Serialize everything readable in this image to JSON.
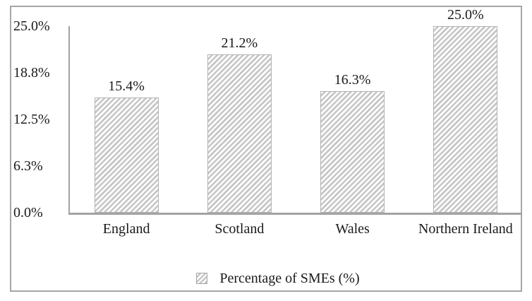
{
  "chart_data": {
    "type": "bar",
    "title": "",
    "xlabel": "",
    "ylabel": "",
    "categories": [
      "England",
      "Scotland",
      "Wales",
      "Northern Ireland"
    ],
    "values": [
      15.4,
      21.2,
      16.3,
      25.0
    ],
    "value_labels": [
      "15.4%",
      "21.2%",
      "16.3%",
      "25.0%"
    ],
    "ylim": [
      0,
      25
    ],
    "yticks": [
      {
        "label": "25.0%",
        "value": 25
      },
      {
        "label": "18.8%",
        "value": 18.75
      },
      {
        "label": "12.5%",
        "value": 12.5
      },
      {
        "label": "6.3%",
        "value": 6.25
      },
      {
        "label": "0.0%",
        "value": 0
      }
    ],
    "grid": false,
    "legend": {
      "label": "Percentage of SMEs (%)",
      "position": "bottom",
      "swatch": "diagonal-hatch"
    },
    "style": {
      "bar_fill": "diagonal-hatch",
      "hatch_color": "#c6c6c6",
      "bar_border_color": "#b3b3b3",
      "axis_color": "#a3a3a3",
      "figure_border_color": "#a6a6a6",
      "text_color": "#1a1a1a"
    }
  }
}
